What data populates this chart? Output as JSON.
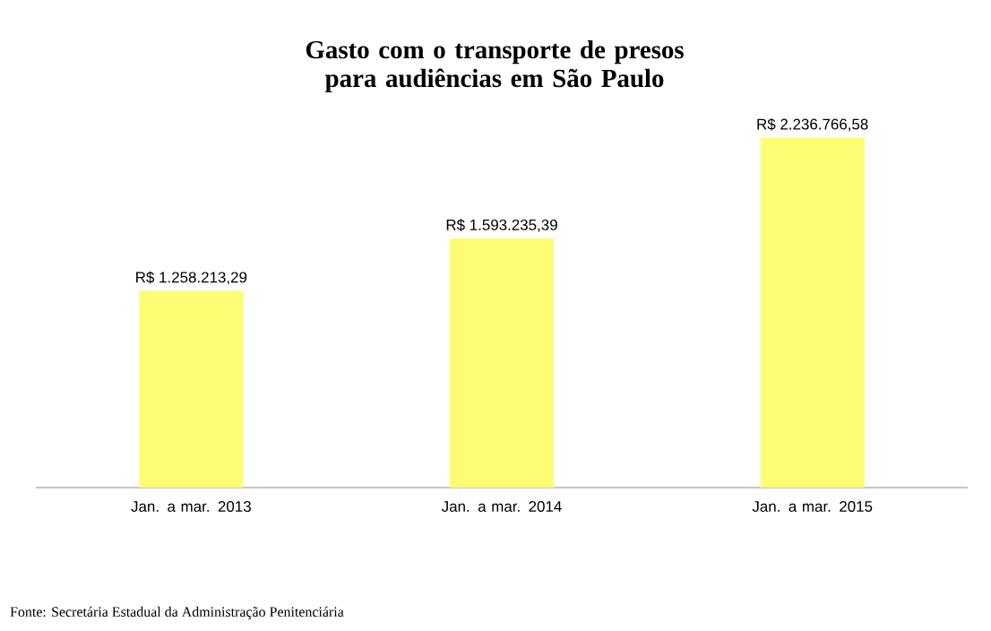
{
  "chart_data": {
    "type": "bar",
    "title": "Gasto com o transporte de presos para audiências em São Paulo",
    "categories": [
      "Jan. a mar. 2013",
      "Jan. a mar. 2014",
      "Jan. a mar. 2015"
    ],
    "values": [
      1258213.29,
      1593235.39,
      2236766.58
    ],
    "value_labels": [
      "R$ 1.258.213,29",
      "R$ 1.593.235,39",
      "R$ 2.236.766,58"
    ],
    "color": "#fdfd74",
    "annotations": [
      "Fonte: Secretária Estadual da Administração Penitenciária"
    ]
  }
}
